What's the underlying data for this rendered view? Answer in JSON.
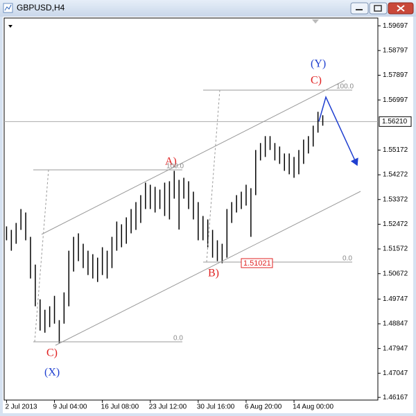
{
  "window_title": "GBPUSD,H4",
  "chart_data": {
    "type": "ohlc",
    "categories": [
      "2 Jul 2013",
      null,
      null,
      null,
      null,
      null,
      null,
      null,
      null,
      null,
      "9 Jul 04:00",
      null,
      null,
      null,
      null,
      null,
      null,
      null,
      null,
      null,
      "16 Jul 08:00",
      null,
      null,
      null,
      null,
      null,
      null,
      null,
      null,
      null,
      "23 Jul 12:00",
      null,
      null,
      null,
      null,
      null,
      null,
      null,
      null,
      null,
      "30 Jul 16:00",
      null,
      null,
      null,
      null,
      null,
      null,
      null,
      null,
      null,
      "6 Aug 20:00",
      null,
      null,
      null,
      null,
      null,
      null,
      null,
      null,
      null,
      "14 Aug 00:00",
      null,
      null,
      null,
      null,
      null,
      null,
      null,
      null,
      null,
      null,
      null,
      null,
      null,
      null,
      null,
      null,
      null
    ],
    "high": [
      1.52393,
      1.52266,
      1.52519,
      1.53025,
      1.52899,
      1.52013,
      1.51002,
      1.49737,
      1.49358,
      1.49484,
      1.49864,
      1.48979,
      1.4999,
      1.51508,
      1.52013,
      1.5214,
      1.51761,
      1.51508,
      1.51381,
      1.51255,
      1.51634,
      1.51508,
      1.52013,
      1.5257,
      1.52469,
      1.52722,
      1.53025,
      1.53278,
      1.53531,
      1.53986,
      1.5391,
      1.53834,
      1.53733,
      1.53986,
      1.54037,
      1.54416,
      1.54087,
      1.54163,
      1.54037,
      1.53657,
      1.53278,
      1.52772,
      1.52646,
      1.52266,
      1.51887,
      1.51761,
      1.53025,
      1.53278,
      1.53531,
      1.53657,
      1.5391,
      1.53784,
      1.55175,
      1.55428,
      1.5568,
      1.5568,
      1.55428,
      1.55301,
      1.55048,
      1.55048,
      1.54922,
      1.55175,
      1.55554,
      1.5568,
      1.5606,
      1.56566,
      1.56439,
      null,
      null,
      null,
      null,
      null,
      null,
      null,
      null,
      null,
      null,
      null
    ],
    "low": [
      1.51887,
      1.51508,
      1.51761,
      1.52266,
      1.51887,
      1.50496,
      1.49484,
      1.48599,
      1.48523,
      1.48726,
      1.48852,
      1.48144,
      1.48852,
      1.49484,
      1.50749,
      1.51128,
      1.50875,
      1.50622,
      1.50496,
      1.5037,
      1.50622,
      1.50496,
      1.50875,
      1.51508,
      1.51634,
      1.51761,
      1.5214,
      1.52266,
      1.52519,
      1.53025,
      1.53025,
      1.52899,
      1.53025,
      1.52772,
      1.52646,
      1.53404,
      1.52278,
      1.53404,
      1.53025,
      1.52646,
      1.51887,
      1.51887,
      1.51634,
      1.51255,
      1.51128,
      1.51052,
      1.51255,
      1.52519,
      1.52899,
      1.53025,
      1.53151,
      1.52013,
      1.53531,
      1.54795,
      1.54922,
      1.55175,
      1.54795,
      1.54669,
      1.54416,
      1.5429,
      1.54163,
      1.5429,
      1.54669,
      1.55048,
      1.55301,
      1.55807,
      1.5606,
      null,
      null,
      null,
      null,
      null,
      null,
      null,
      null,
      null,
      null,
      null
    ],
    "color": "#000000",
    "ylim": [
      1.4607,
      1.5998
    ],
    "yticks": [
      1.59697,
      1.58797,
      1.57897,
      1.56997,
      1.55172,
      1.54272,
      1.53372,
      1.52472,
      1.51572,
      1.50672,
      1.49747,
      1.48847,
      1.47947,
      1.47047,
      1.46167
    ],
    "last_price": {
      "value": 1.5621,
      "label": "1.56210"
    },
    "grid": false,
    "annotations": [
      "(Y)",
      "C)",
      "100.0",
      "A)",
      "100.0",
      "B)",
      "1.51021",
      "0.0",
      "C)",
      "(X)",
      "0.0"
    ]
  }
}
